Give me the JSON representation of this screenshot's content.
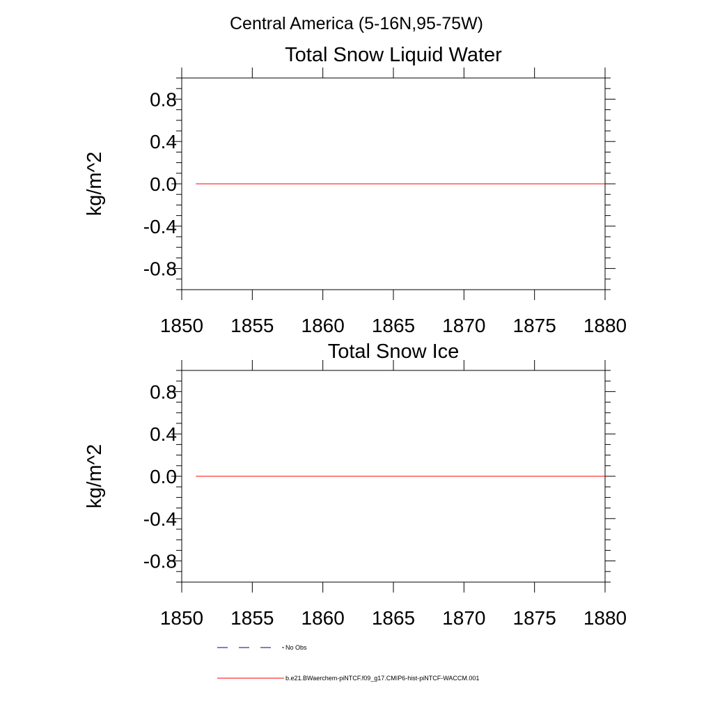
{
  "figure": {
    "suptitle": "Central America (5-16N,95-75W)"
  },
  "chart_data": [
    {
      "type": "line",
      "title": "Total Snow Liquid Water",
      "xlabel": "",
      "ylabel": "kg/m^2",
      "xlim": [
        1850,
        1880
      ],
      "ylim": [
        -1.0,
        1.0
      ],
      "xticks": [
        "1850",
        "1855",
        "1860",
        "1865",
        "1870",
        "1875",
        "1880"
      ],
      "yticks": [
        "0.8",
        "0.4",
        "0.0",
        "-0.4",
        "-0.8"
      ],
      "grid": false,
      "series": [
        {
          "name": "b.e21.BWaerchem-piNTCF.f09_g17.CMIP6-hist-piNTCF-WACCM.001",
          "color": "#ff0000",
          "x": [
            1851,
            1880
          ],
          "y": [
            0.0,
            0.0
          ]
        }
      ]
    },
    {
      "type": "line",
      "title": "Total Snow Ice",
      "xlabel": "",
      "ylabel": "kg/m^2",
      "xlim": [
        1850,
        1880
      ],
      "ylim": [
        -1.0,
        1.0
      ],
      "xticks": [
        "1850",
        "1855",
        "1860",
        "1865",
        "1870",
        "1875",
        "1880"
      ],
      "yticks": [
        "0.8",
        "0.4",
        "0.0",
        "-0.4",
        "-0.8"
      ],
      "grid": false,
      "series": [
        {
          "name": "b.e21.BWaerchem-piNTCF.f09_g17.CMIP6-hist-piNTCF-WACCM.001",
          "color": "#ff0000",
          "x": [
            1851,
            1880
          ],
          "y": [
            0.0,
            0.0
          ]
        }
      ]
    }
  ],
  "legend": {
    "placement": "bottom-left",
    "items": [
      {
        "label": "No Obs",
        "style": "dashed",
        "color": "#000080"
      },
      {
        "label": "b.e21.BWaerchem-piNTCF.f09_g17.CMIP6-hist-piNTCF-WACCM.001",
        "style": "solid",
        "color": "#ff0000"
      }
    ]
  }
}
